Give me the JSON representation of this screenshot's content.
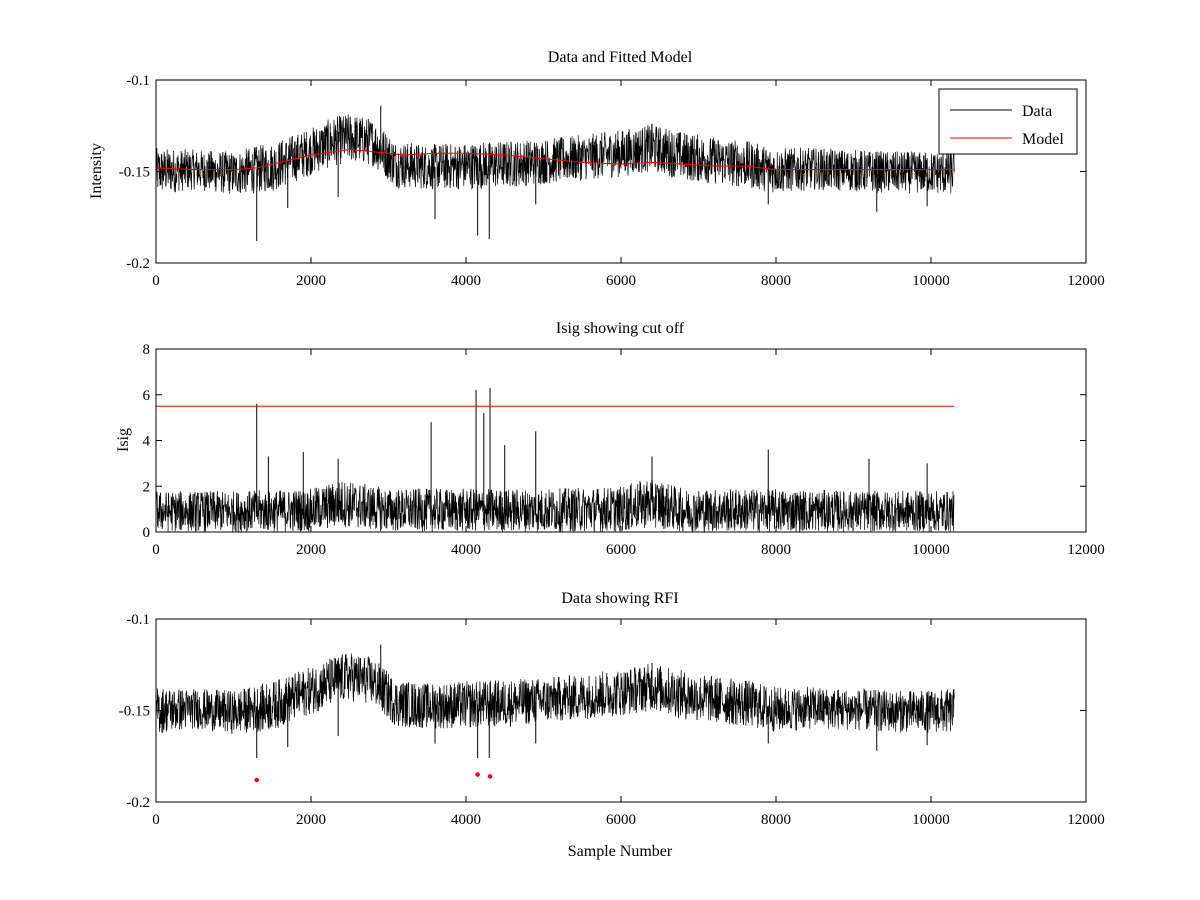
{
  "figure": {
    "background": "#ffffff"
  },
  "colors": {
    "data": "#000000",
    "model": "#ff0000",
    "rfi_marker": "#ff0000",
    "cutoff": "#ff0000"
  },
  "chart_data": [
    {
      "type": "line",
      "title": "Data and Fitted Model",
      "xlabel": "",
      "ylabel": "Intensity",
      "xlim": [
        0,
        12000
      ],
      "ylim": [
        -0.2,
        -0.1
      ],
      "xticks": [
        0,
        2000,
        4000,
        6000,
        8000,
        10000,
        12000
      ],
      "xtick_labels": [
        "0",
        "2000",
        "4000",
        "6000",
        "8000",
        "10000",
        "12000"
      ],
      "yticks": [
        -0.1,
        -0.15,
        -0.2
      ],
      "ytick_labels": [
        "-0.1",
        "-0.15",
        "-0.2"
      ],
      "legend": {
        "placement": "top-right",
        "entries": [
          "Data",
          "Model"
        ]
      },
      "series": [
        {
          "name": "Data",
          "color": "#000000",
          "n_samples": 10300,
          "envelope": {
            "x": [
              0,
              500,
              1000,
              1500,
              2000,
              2300,
              2500,
              2800,
              3100,
              3500,
              4000,
              4500,
              5000,
              5500,
              6000,
              6400,
              6800,
              7200,
              7600,
              8000,
              8500,
              9000,
              9500,
              10000,
              10300
            ],
            "low": [
              -0.163,
              -0.16,
              -0.163,
              -0.161,
              -0.152,
              -0.147,
              -0.145,
              -0.147,
              -0.159,
              -0.16,
              -0.16,
              -0.159,
              -0.157,
              -0.155,
              -0.153,
              -0.15,
              -0.155,
              -0.157,
              -0.159,
              -0.162,
              -0.16,
              -0.161,
              -0.162,
              -0.162,
              -0.163
            ],
            "high": [
              -0.137,
              -0.138,
              -0.139,
              -0.134,
              -0.126,
              -0.12,
              -0.118,
              -0.121,
              -0.133,
              -0.135,
              -0.134,
              -0.133,
              -0.132,
              -0.13,
              -0.127,
              -0.124,
              -0.128,
              -0.131,
              -0.133,
              -0.137,
              -0.137,
              -0.138,
              -0.139,
              -0.139,
              -0.138
            ]
          },
          "spikes": [
            {
              "x": 1300,
              "y": -0.188
            },
            {
              "x": 1700,
              "y": -0.17
            },
            {
              "x": 2350,
              "y": -0.164
            },
            {
              "x": 2900,
              "y": -0.114
            },
            {
              "x": 3600,
              "y": -0.176
            },
            {
              "x": 4150,
              "y": -0.185
            },
            {
              "x": 4300,
              "y": -0.187
            },
            {
              "x": 4900,
              "y": -0.168
            },
            {
              "x": 6400,
              "y": -0.124
            },
            {
              "x": 7900,
              "y": -0.168
            },
            {
              "x": 9300,
              "y": -0.172
            },
            {
              "x": 9950,
              "y": -0.169
            }
          ]
        },
        {
          "name": "Model",
          "color": "#ff0000",
          "x": [
            0,
            500,
            1000,
            1300,
            1600,
            2000,
            2500,
            3000,
            3200,
            3600,
            4000,
            4500,
            5000,
            5500,
            6000,
            6400,
            6800,
            7200,
            7600,
            7800,
            8000,
            8500,
            9000,
            9500,
            10000,
            10300
          ],
          "y": [
            -0.148,
            -0.149,
            -0.149,
            -0.148,
            -0.145,
            -0.141,
            -0.138,
            -0.14,
            -0.141,
            -0.14,
            -0.14,
            -0.141,
            -0.143,
            -0.145,
            -0.146,
            -0.145,
            -0.146,
            -0.147,
            -0.147,
            -0.148,
            -0.149,
            -0.149,
            -0.149,
            -0.149,
            -0.149,
            -0.149
          ]
        }
      ]
    },
    {
      "type": "line",
      "title": "Isig showing cut off",
      "xlabel": "",
      "ylabel": "Isig",
      "xlim": [
        0,
        12000
      ],
      "ylim": [
        0,
        8
      ],
      "xticks": [
        0,
        2000,
        4000,
        6000,
        8000,
        10000,
        12000
      ],
      "xtick_labels": [
        "0",
        "2000",
        "4000",
        "6000",
        "8000",
        "10000",
        "12000"
      ],
      "yticks": [
        0,
        2,
        4,
        6,
        8
      ],
      "ytick_labels": [
        "0",
        "2",
        "4",
        "6",
        "8"
      ],
      "series": [
        {
          "name": "Isig",
          "color": "#000000",
          "n_samples": 10300,
          "envelope": {
            "x": [
              0,
              1000,
              2000,
              2400,
              3000,
              4000,
              5000,
              6000,
              6400,
              6800,
              8000,
              9000,
              10300
            ],
            "low": [
              0,
              0,
              0,
              0.2,
              0,
              0,
              0,
              0,
              0.2,
              0,
              0,
              0,
              0
            ],
            "high": [
              1.8,
              1.8,
              1.9,
              2.3,
              1.9,
              1.9,
              1.9,
              2.0,
              2.4,
              1.9,
              1.9,
              1.8,
              1.8
            ]
          },
          "spikes": [
            {
              "x": 1300,
              "y": 5.6
            },
            {
              "x": 1450,
              "y": 3.3
            },
            {
              "x": 1900,
              "y": 3.5
            },
            {
              "x": 2350,
              "y": 3.2
            },
            {
              "x": 3550,
              "y": 4.8
            },
            {
              "x": 4130,
              "y": 6.2
            },
            {
              "x": 4230,
              "y": 5.2
            },
            {
              "x": 4310,
              "y": 6.3
            },
            {
              "x": 4500,
              "y": 3.8
            },
            {
              "x": 4900,
              "y": 4.4
            },
            {
              "x": 6400,
              "y": 3.3
            },
            {
              "x": 7900,
              "y": 3.6
            },
            {
              "x": 9200,
              "y": 3.2
            },
            {
              "x": 9950,
              "y": 3.0
            }
          ]
        },
        {
          "name": "Cut off",
          "color": "#ff0000",
          "x": [
            0,
            10300
          ],
          "y": [
            5.5,
            5.5
          ]
        }
      ]
    },
    {
      "type": "line",
      "title": "Data showing RFI",
      "xlabel": "Sample Number",
      "ylabel": "",
      "xlim": [
        0,
        12000
      ],
      "ylim": [
        -0.2,
        -0.1
      ],
      "xticks": [
        0,
        2000,
        4000,
        6000,
        8000,
        10000,
        12000
      ],
      "xtick_labels": [
        "0",
        "2000",
        "4000",
        "6000",
        "8000",
        "10000",
        "12000"
      ],
      "yticks": [
        -0.1,
        -0.15,
        -0.2
      ],
      "ytick_labels": [
        "-0.1",
        "-0.15",
        "-0.2"
      ],
      "series": [
        {
          "name": "Data",
          "color": "#000000",
          "n_samples": 10300,
          "envelope": {
            "x": [
              0,
              500,
              1000,
              1500,
              2000,
              2300,
              2500,
              2800,
              3100,
              3500,
              4000,
              4500,
              5000,
              5500,
              6000,
              6400,
              6800,
              7200,
              7600,
              8000,
              8500,
              9000,
              9500,
              10000,
              10300
            ],
            "low": [
              -0.163,
              -0.16,
              -0.163,
              -0.161,
              -0.152,
              -0.147,
              -0.145,
              -0.147,
              -0.159,
              -0.16,
              -0.16,
              -0.159,
              -0.157,
              -0.155,
              -0.153,
              -0.15,
              -0.155,
              -0.157,
              -0.159,
              -0.162,
              -0.16,
              -0.161,
              -0.162,
              -0.162,
              -0.163
            ],
            "high": [
              -0.137,
              -0.138,
              -0.139,
              -0.134,
              -0.126,
              -0.12,
              -0.118,
              -0.121,
              -0.133,
              -0.135,
              -0.134,
              -0.133,
              -0.132,
              -0.13,
              -0.127,
              -0.124,
              -0.128,
              -0.131,
              -0.133,
              -0.137,
              -0.137,
              -0.138,
              -0.139,
              -0.139,
              -0.138
            ]
          },
          "spikes": [
            {
              "x": 1300,
              "y": -0.176
            },
            {
              "x": 1700,
              "y": -0.17
            },
            {
              "x": 2350,
              "y": -0.164
            },
            {
              "x": 2900,
              "y": -0.114
            },
            {
              "x": 3600,
              "y": -0.168
            },
            {
              "x": 4150,
              "y": -0.176
            },
            {
              "x": 4300,
              "y": -0.176
            },
            {
              "x": 4900,
              "y": -0.168
            },
            {
              "x": 6400,
              "y": -0.124
            },
            {
              "x": 7900,
              "y": -0.168
            },
            {
              "x": 9300,
              "y": -0.172
            },
            {
              "x": 9950,
              "y": -0.169
            }
          ]
        },
        {
          "name": "RFI",
          "color": "#ff0000",
          "marker": "dot",
          "x": [
            1300,
            4150,
            4310
          ],
          "y": [
            -0.188,
            -0.185,
            -0.186
          ]
        }
      ]
    }
  ]
}
